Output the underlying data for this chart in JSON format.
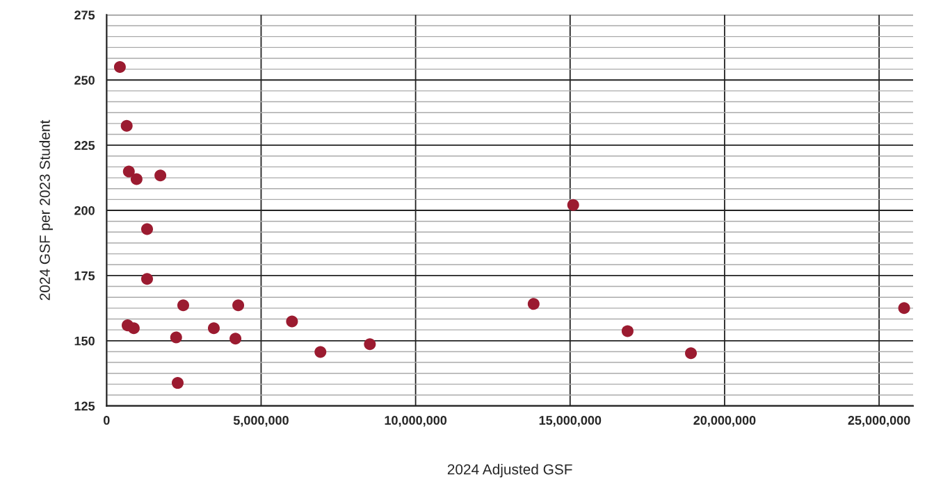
{
  "chart_data": {
    "type": "scatter",
    "xlabel": "2024 Adjusted GSF",
    "ylabel": "2024 GSF per 2023 Student",
    "x": [
      430000,
      650000,
      720000,
      970000,
      1740000,
      1310000,
      1310000,
      680000,
      880000,
      2250000,
      2300000,
      2480000,
      3470000,
      4170000,
      4260000,
      6000000,
      6920000,
      8520000,
      13820000,
      15100000,
      16860000,
      18910000,
      25810000
    ],
    "series": [
      {
        "color": "#9b1b30",
        "values": [
          255.0,
          232.4,
          214.9,
          212.0,
          213.4,
          192.8,
          173.7,
          155.9,
          154.8,
          151.3,
          133.8,
          163.6,
          154.8,
          150.8,
          163.6,
          157.4,
          145.7,
          148.7,
          164.1,
          202.1,
          153.7,
          145.2,
          162.5
        ]
      }
    ],
    "xlim": [
      0,
      26100000
    ],
    "xticks": [
      0,
      {
        "value": 5000000,
        "label": "5,000,000"
      },
      {
        "value": 10000000,
        "label": "10,000,000"
      },
      {
        "value": 15000000,
        "label": "15,000,000"
      },
      {
        "value": 20000000,
        "label": "20,000,000"
      },
      {
        "value": 25000000,
        "label": "25,000,000"
      }
    ],
    "ylim": [
      125,
      275
    ],
    "yticks": [
      125,
      {
        "value": 129.17,
        "label": null
      },
      {
        "value": 133.33,
        "label": null
      },
      {
        "value": 137.5,
        "label": null
      },
      {
        "value": 141.67,
        "label": null
      },
      {
        "value": 145.83,
        "label": null
      },
      150,
      {
        "value": 154.17,
        "label": null
      },
      {
        "value": 158.33,
        "label": null
      },
      {
        "value": 162.5,
        "label": null
      },
      {
        "value": 166.67,
        "label": null
      },
      {
        "value": 170.83,
        "label": null
      },
      175,
      {
        "value": 179.17,
        "label": null
      },
      {
        "value": 183.33,
        "label": null
      },
      {
        "value": 187.5,
        "label": null
      },
      {
        "value": 191.67,
        "label": null
      },
      {
        "value": 195.83,
        "label": null
      },
      200,
      {
        "value": 204.17,
        "label": null
      },
      {
        "value": 208.33,
        "label": null
      },
      {
        "value": 212.5,
        "label": null
      },
      {
        "value": 216.67,
        "label": null
      },
      {
        "value": 220.83,
        "label": null
      },
      225,
      {
        "value": 229.17,
        "label": null
      },
      {
        "value": 233.33,
        "label": null
      },
      {
        "value": 237.5,
        "label": null
      },
      {
        "value": 241.67,
        "label": null
      },
      {
        "value": 245.83,
        "label": null
      },
      250,
      {
        "value": 254.17,
        "label": null
      },
      {
        "value": 258.33,
        "label": null
      },
      {
        "value": 262.5,
        "label": null
      },
      {
        "value": 266.67,
        "label": null
      },
      {
        "value": 270.83,
        "label": null
      },
      275
    ],
    "grid": true,
    "marker": "circle"
  }
}
